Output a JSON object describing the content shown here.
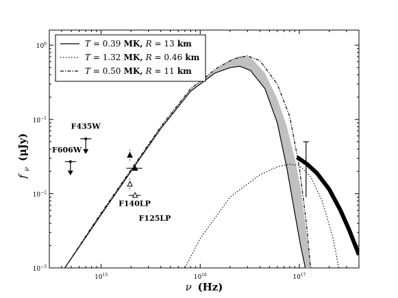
{
  "chart_data": {
    "type": "line",
    "title": "",
    "xlabel_sym": "ν",
    "xlabel_unit": "(Hz)",
    "ylabel_sym": "f",
    "ylabel_sub": "ν",
    "ylabel_unit": "(μJy)",
    "x_scale": "log",
    "y_scale": "log",
    "xlim": [
      300000000000000.0,
      4e+17
    ],
    "ylim": [
      0.001,
      1.6
    ],
    "x_ticks": [
      {
        "value": 1000000000000000.0,
        "base": "10",
        "exp": "15"
      },
      {
        "value": 1e+16,
        "base": "10",
        "exp": "16"
      },
      {
        "value": 1e+17,
        "base": "10",
        "exp": "17"
      }
    ],
    "y_ticks": [
      {
        "value": 0.001,
        "base": "10",
        "exp": "−3"
      },
      {
        "value": 0.01,
        "base": "10",
        "exp": "−2"
      },
      {
        "value": 0.1,
        "base": "10",
        "exp": "−1"
      },
      {
        "value": 1,
        "base": "10",
        "exp": "0"
      }
    ],
    "legend_position": "top-left",
    "legend": [
      {
        "style": "solid",
        "T": "0.39",
        "R": "13"
      },
      {
        "style": "dotted",
        "T": "1.32",
        "R": "0.46"
      },
      {
        "style": "dashdot",
        "T": "0.50",
        "R": "11"
      }
    ],
    "legend_text": {
      "T": "T",
      "eq": " = ",
      "mk": " MK, ",
      "R": "R",
      "km": " km"
    },
    "series": [
      {
        "name": "T = 0.39 MK, R = 13 km",
        "style": "solid",
        "x": [
          430000000000000.0,
          1000000000000000.0,
          2000000000000000.0,
          4000000000000000.0,
          8000000000000000.0,
          1.4e+16,
          2e+16,
          2.5e+16,
          3.2e+16,
          4.5e+16,
          6e+16,
          7.5e+16,
          9e+16,
          1.03e+17,
          1.15e+17
        ],
        "y": [
          0.001,
          0.0052,
          0.02,
          0.075,
          0.24,
          0.42,
          0.5,
          0.52,
          0.46,
          0.26,
          0.09,
          0.022,
          0.0055,
          0.002,
          0.001
        ]
      },
      {
        "name": "T = 1.32 MK, R = 0.46 km",
        "style": "dotted",
        "x": [
          7000000000000000.0,
          1e+16,
          2e+16,
          4e+16,
          6e+16,
          8e+16,
          1e+17,
          1.3e+17,
          1.7e+17,
          2.2e+17,
          2.5e+17
        ],
        "y": [
          0.001,
          0.0025,
          0.009,
          0.018,
          0.023,
          0.025,
          0.024,
          0.017,
          0.008,
          0.0025,
          0.001
        ]
      },
      {
        "name": "T = 0.50 MK, R = 11 km",
        "style": "dashdot",
        "x": [
          430000000000000.0,
          1000000000000000.0,
          2000000000000000.0,
          4000000000000000.0,
          8000000000000000.0,
          1.5e+16,
          2.2e+16,
          3e+16,
          4e+16,
          6e+16,
          8e+16,
          1e+17,
          1.18e+17,
          1.3e+17
        ],
        "y": [
          0.001,
          0.0055,
          0.021,
          0.08,
          0.26,
          0.5,
          0.66,
          0.72,
          0.62,
          0.3,
          0.11,
          0.023,
          0.004,
          0.001
        ]
      }
    ],
    "band": {
      "name": "shaded region",
      "x": [
        430000000000000.0,
        1000000000000000.0,
        2000000000000000.0,
        4000000000000000.0,
        8000000000000000.0,
        1.4e+16,
        2e+16,
        2.5e+16,
        3.2e+16,
        4.5e+16,
        6e+16,
        7.5e+16,
        9e+16,
        1.03e+17,
        1.15e+17,
        1.3e+17
      ],
      "lower": [
        0.001,
        0.0052,
        0.02,
        0.075,
        0.24,
        0.42,
        0.5,
        0.52,
        0.46,
        0.26,
        0.09,
        0.022,
        0.0055,
        0.002,
        0.001,
        0.001
      ],
      "upper": [
        0.001,
        0.0055,
        0.021,
        0.08,
        0.26,
        0.46,
        0.63,
        0.71,
        0.7,
        0.42,
        0.19,
        0.08,
        0.03,
        0.012,
        0.004,
        0.001
      ]
    },
    "xray_spectrum": {
      "x": [
        9.5e+16,
        1.2e+17,
        1.5e+17,
        2e+17,
        2.6e+17,
        3.2e+17,
        4e+17
      ],
      "y": [
        0.031,
        0.025,
        0.019,
        0.0115,
        0.006,
        0.0032,
        0.0015
      ]
    },
    "xray_errorbar": {
      "x": 1.17e+17,
      "low": 0.009,
      "high": 0.05
    },
    "upper_limits": [
      {
        "label": "F435W",
        "x": 700000000000000.0,
        "y": 0.055,
        "arrow_to": 0.035
      },
      {
        "label": "F606W",
        "x": 490000000000000.0,
        "y": 0.027,
        "arrow_to": 0.018
      }
    ],
    "uv_points": [
      {
        "x": 2200000000000000.0,
        "y": 0.022,
        "marker": "filled-triangle",
        "xerr": [
          1800000000000000.0,
          2600000000000000.0
        ]
      },
      {
        "x": 2200000000000000.0,
        "y": 0.0095,
        "marker": "open-triangle",
        "xerr": [
          1900000000000000.0,
          2500000000000000.0
        ]
      },
      {
        "x": 1950000000000000.0,
        "y": 0.033,
        "marker": "filled-triangle-dotted"
      },
      {
        "x": 1950000000000000.0,
        "y": 0.0135,
        "marker": "open-triangle-dotted"
      }
    ],
    "annotations": [
      {
        "text": "F435W",
        "x": 700000000000000.0,
        "y": 0.075
      },
      {
        "text": "F606W",
        "x": 320000000000000.0,
        "y": 0.036
      },
      {
        "text": "F140LP",
        "x": 1500000000000000.0,
        "y": 0.0068
      },
      {
        "text": "F125LP",
        "x": 2400000000000000.0,
        "y": 0.0043
      }
    ]
  }
}
